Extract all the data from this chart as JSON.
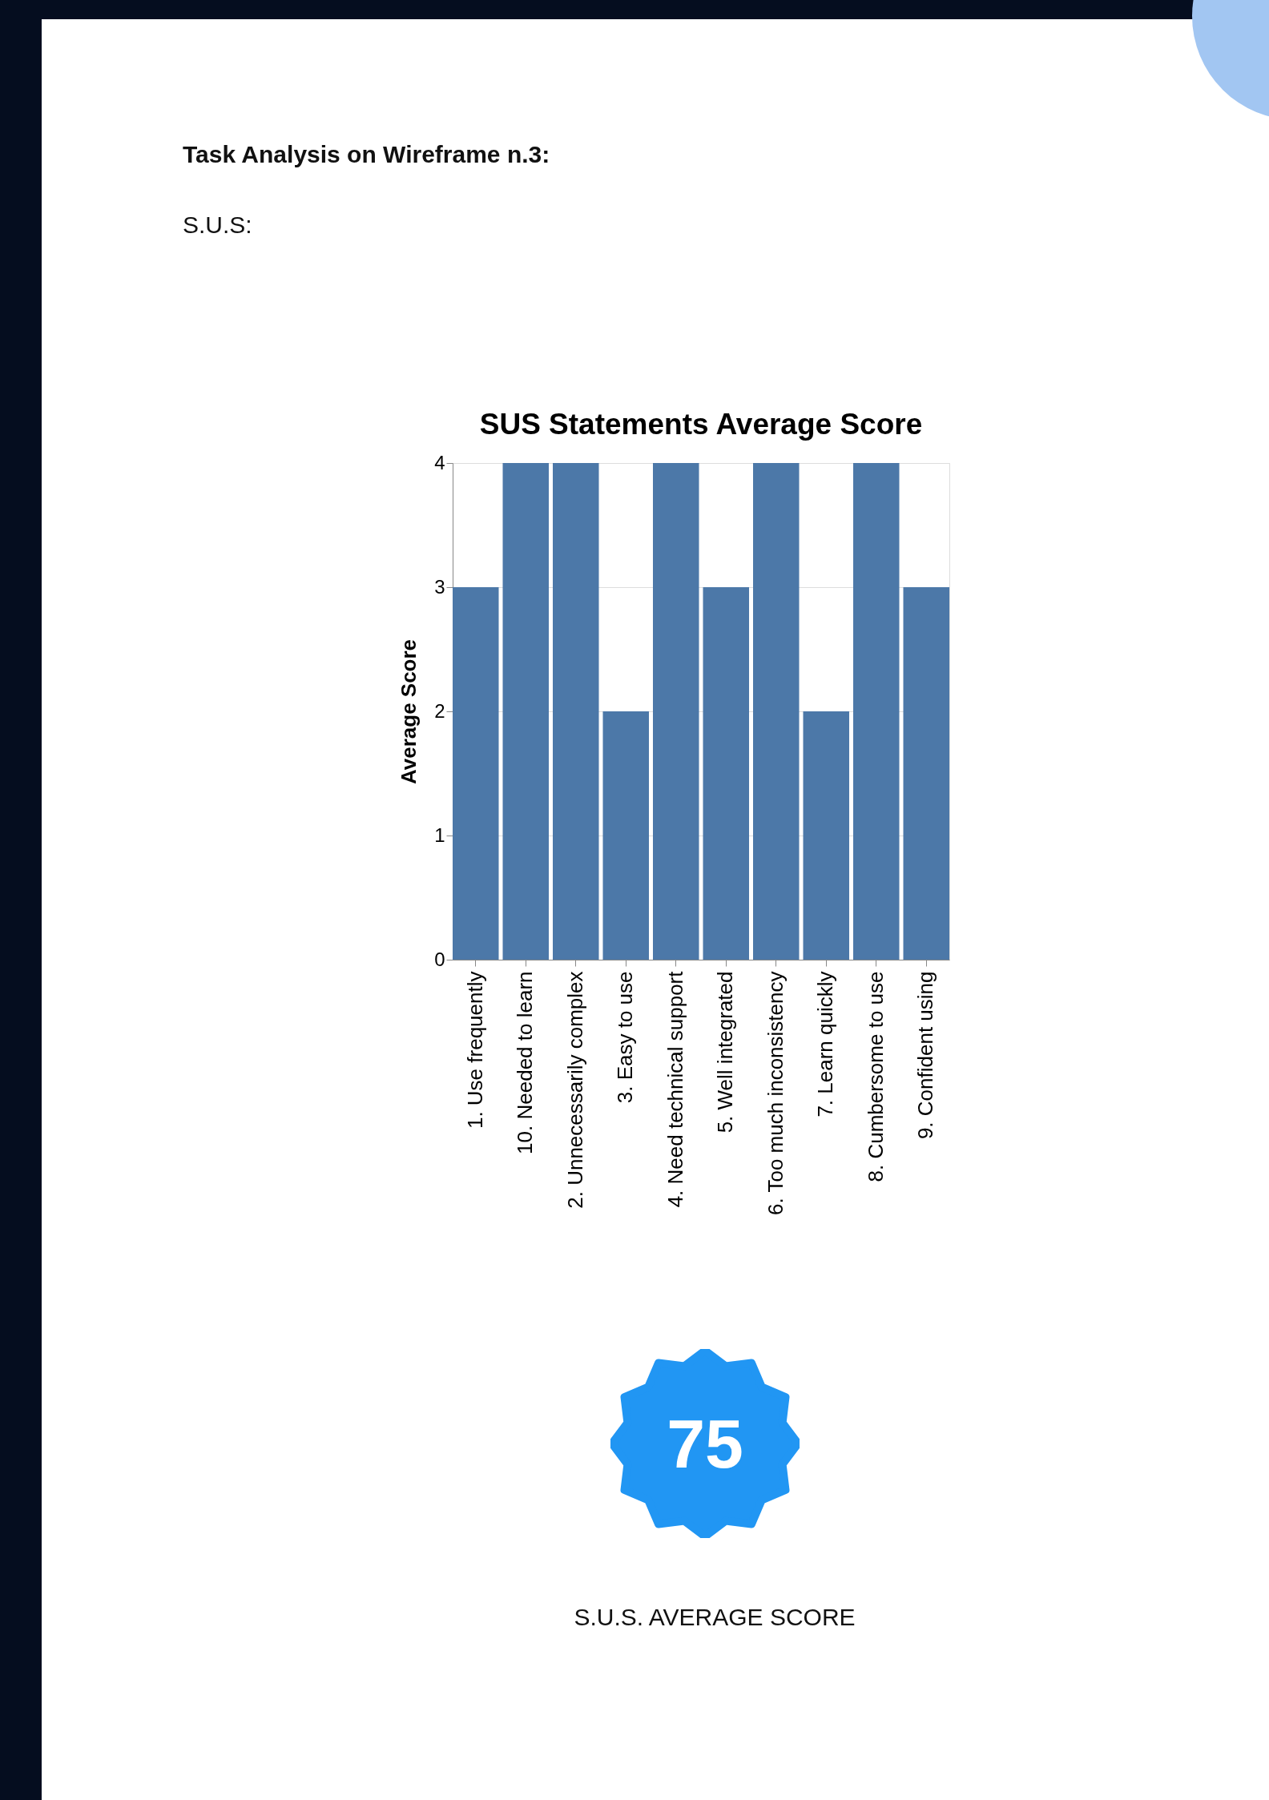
{
  "chart_data": {
    "type": "bar",
    "title": "SUS Statements Average Score",
    "ylabel": "Average Score",
    "categories": [
      "1. Use frequently",
      "10. Needed to learn",
      "2. Unnecessarily complex",
      "3. Easy to use",
      "4. Need technical support",
      "5. Well integrated",
      "6. Too much inconsistency",
      "7. Learn quickly",
      "8. Cumbersome to use",
      "9. Confident using"
    ],
    "values": [
      3,
      4,
      4,
      2,
      4,
      3,
      4,
      2,
      4,
      3
    ],
    "color": "#4c78a8",
    "ylim": [
      0,
      4
    ],
    "yticks": [
      0,
      1,
      2,
      3,
      4
    ],
    "grid": "y",
    "annotations": [
      "Task Analysis on Wireframe n.3:",
      "S.U.S:",
      "75",
      "S.U.S. AVERAGE SCORE"
    ]
  }
}
